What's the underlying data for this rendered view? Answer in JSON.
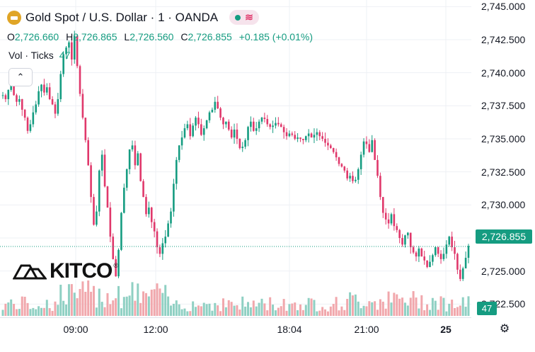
{
  "header": {
    "title": "Gold Spot / U.S. Dollar · 1 · OANDA",
    "coin_icon": "gold-bars-icon",
    "status_icons": [
      "market-open-dot-icon",
      "wave-icon"
    ]
  },
  "ohlc": {
    "o_label": "O",
    "o_value": "2,726.660",
    "h_label": "H",
    "h_value": "2,726.865",
    "l_label": "L",
    "l_value": "2,726.560",
    "c_label": "C",
    "c_value": "2,726.855",
    "change": "+0.185 (+0.01%)"
  },
  "volume": {
    "label": "Vol · Ticks",
    "value": "47"
  },
  "collapse_icon": "chevron-up-icon",
  "price_axis": {
    "ticks": [
      "2,745.000",
      "2,742.500",
      "2,740.000",
      "2,737.500",
      "2,735.000",
      "2,732.500",
      "2,730.000",
      "2,727.500",
      "2,725.000",
      "2,722.500"
    ],
    "current_price": "2,726.855",
    "current_volume": "47"
  },
  "time_axis": {
    "ticks": [
      {
        "label": "09:00",
        "bold": false
      },
      {
        "label": "12:00",
        "bold": false
      },
      {
        "label": "18:04",
        "bold": false
      },
      {
        "label": "21:00",
        "bold": false
      },
      {
        "label": "25",
        "bold": true
      }
    ]
  },
  "settings_icon": "gear-icon",
  "watermark": {
    "text": "KITCO",
    "mark": "®"
  },
  "colors": {
    "up": "#159c81",
    "down": "#e0386b",
    "up_vol": "#8fd0c3",
    "down_vol": "#f1a7ac",
    "grid": "#eef0f4"
  },
  "chart_data": {
    "type": "candlestick",
    "title": "Gold Spot / U.S. Dollar · 1 · OANDA",
    "ylim": [
      2721.5,
      2745.5
    ],
    "y_ticks": [
      2745,
      2742.5,
      2740,
      2737.5,
      2735,
      2732.5,
      2730,
      2727.5,
      2725,
      2722.5
    ],
    "x_ticks": [
      "09:00",
      "12:00",
      "18:04",
      "21:00",
      "25"
    ],
    "last_price": 2726.855,
    "series": [
      {
        "name": "price",
        "values": [
          2738.3,
          2738.0,
          2738.7,
          2739.2,
          2738.3,
          2737.8,
          2738.0,
          2737.2,
          2736.6,
          2735.6,
          2736.1,
          2737.0,
          2737.6,
          2738.6,
          2739.1,
          2738.5,
          2738.9,
          2738.0,
          2737.6,
          2736.9,
          2738.0,
          2739.9,
          2741.4,
          2741.9,
          2742.3,
          2741.0,
          2742.8,
          2740.5,
          2738.4,
          2736.6,
          2734.9,
          2733.0,
          2730.6,
          2728.5,
          2729.5,
          2732.6,
          2733.8,
          2731.4,
          2729.8,
          2727.6,
          2725.9,
          2724.6,
          2726.6,
          2729.4,
          2731.3,
          2732.7,
          2734.2,
          2734.5,
          2733.0,
          2733.9,
          2731.8,
          2730.6,
          2729.3,
          2729.8,
          2728.7,
          2728.0,
          2726.8,
          2726.3,
          2727.1,
          2727.6,
          2728.6,
          2729.5,
          2731.6,
          2733.4,
          2734.5,
          2735.1,
          2735.8,
          2736.1,
          2735.2,
          2736.0,
          2736.6,
          2736.1,
          2735.3,
          2735.8,
          2736.4,
          2737.0,
          2737.2,
          2737.8,
          2737.3,
          2736.6,
          2736.1,
          2736.3,
          2735.7,
          2735.1,
          2735.7,
          2735.0,
          2734.3,
          2734.4,
          2734.9,
          2735.9,
          2736.3,
          2735.6,
          2735.8,
          2736.3,
          2736.6,
          2736.5,
          2736.1,
          2735.9,
          2736.0,
          2736.2,
          2736.1,
          2735.9,
          2735.5,
          2735.2,
          2735.4,
          2735.3,
          2735.0,
          2735.1,
          2735.0,
          2734.9,
          2735.2,
          2735.4,
          2735.1,
          2735.3,
          2735.5,
          2735.2,
          2735.0,
          2734.7,
          2734.5,
          2734.3,
          2734.0,
          2733.6,
          2733.1,
          2732.9,
          2732.6,
          2732.0,
          2732.2,
          2731.8,
          2731.9,
          2732.7,
          2733.8,
          2734.8,
          2734.6,
          2734.0,
          2734.9,
          2733.4,
          2732.2,
          2730.6,
          2729.4,
          2728.9,
          2728.6,
          2729.3,
          2728.4,
          2728.1,
          2727.5,
          2727.0,
          2727.7,
          2727.9,
          2726.8,
          2726.4,
          2726.1,
          2726.7,
          2726.1,
          2725.8,
          2725.3,
          2725.7,
          2726.2,
          2726.8,
          2726.3,
          2725.9,
          2726.3,
          2727.0,
          2727.6,
          2726.8,
          2726.3,
          2725.1,
          2724.4,
          2725.2,
          2726.0,
          2726.9
        ]
      }
    ]
  }
}
